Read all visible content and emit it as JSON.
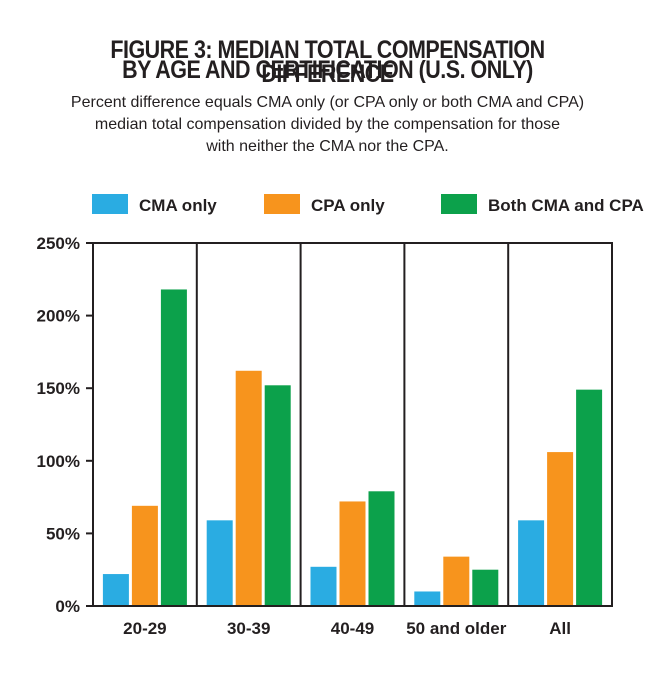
{
  "title_lines": [
    "FIGURE 3: MEDIAN TOTAL COMPENSATION DIFFERENCE",
    "BY AGE AND CERTIFICATION (U.S. ONLY)"
  ],
  "subtitle_lines": [
    "Percent difference equals CMA only (or CPA only or both CMA and CPA)",
    "median total compensation divided by the compensation for those",
    "with neither the CMA nor the CPA."
  ],
  "chart_data": {
    "type": "bar",
    "title": "FIGURE 3: MEDIAN TOTAL COMPENSATION DIFFERENCE BY AGE AND CERTIFICATION (U.S. ONLY)",
    "subtitle": "Percent difference equals CMA only (or CPA only or both CMA and CPA) median total compensation divided by the compensation for those with neither the CMA nor the CPA.",
    "categories": [
      "20-29",
      "30-39",
      "40-49",
      "50 and older",
      "All"
    ],
    "series": [
      {
        "name": "CMA only",
        "color": "#2aace2",
        "values": [
          22,
          59,
          27,
          10,
          59
        ]
      },
      {
        "name": "CPA only",
        "color": "#f7941d",
        "values": [
          69,
          162,
          72,
          34,
          106
        ]
      },
      {
        "name": "Both CMA and CPA",
        "color": "#0ca14b",
        "values": [
          218,
          152,
          79,
          25,
          149
        ]
      }
    ],
    "ylim": [
      0,
      250
    ],
    "yticks": [
      0,
      50,
      100,
      150,
      200,
      250
    ],
    "ytick_labels": [
      "0%",
      "50%",
      "100%",
      "150%",
      "200%",
      "250%"
    ],
    "xlabel": "",
    "ylabel": "",
    "grid": "vertical category dividers",
    "legend_position": "top"
  }
}
